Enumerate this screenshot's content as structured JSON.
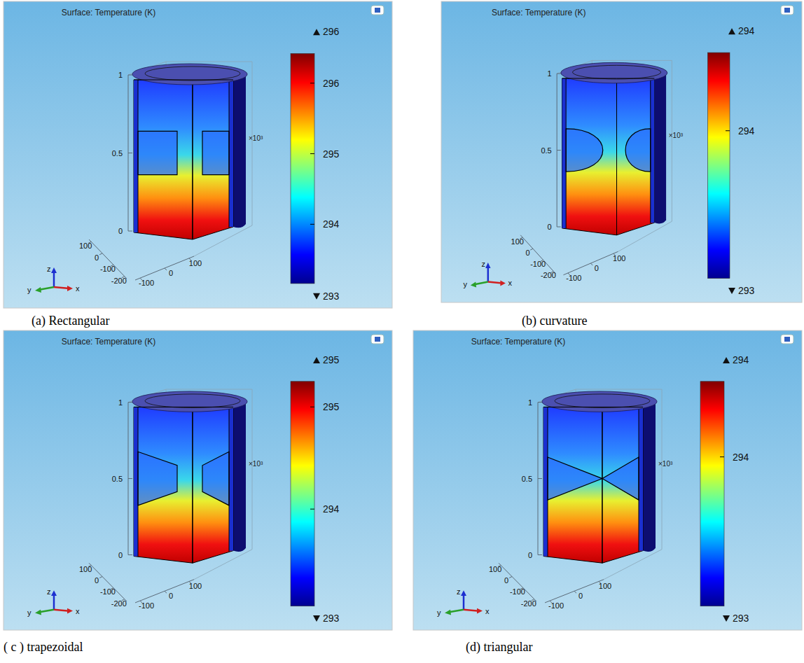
{
  "chart_data": [
    {
      "type": "surface",
      "title": "Surface: Temperature (K)",
      "caption": "(a) Rectangular",
      "xlim": [
        -120,
        120
      ],
      "xticks": [
        -100,
        0,
        100
      ],
      "ylim": [
        -220,
        120
      ],
      "yticks": [
        100,
        0,
        -100,
        -200
      ],
      "zlim": [
        0,
        1
      ],
      "zticks": [
        0,
        0.5,
        1
      ],
      "axis_labels": {
        "x": "x",
        "y": "y",
        "z": "z"
      },
      "annotations": [
        "×10³"
      ],
      "color_range": [
        293.16,
        296.42
      ],
      "color_ticks": [
        294,
        295,
        296
      ],
      "color_max": {
        "value": 296.42,
        "label": "296"
      },
      "color_min": {
        "value": 293.16,
        "label": "293"
      }
    },
    {
      "type": "surface",
      "title": "Surface: Temperature (K)",
      "caption": "(b) curvature",
      "xlim": [
        -120,
        120
      ],
      "xticks": [
        -100,
        0,
        100
      ],
      "ylim": [
        -220,
        120
      ],
      "yticks": [
        100,
        0,
        -100,
        -200
      ],
      "zlim": [
        0,
        1
      ],
      "zticks": [
        0,
        0.5,
        1
      ],
      "axis_labels": {
        "x": "x",
        "y": "y",
        "z": "z"
      },
      "annotations": [
        "×10³"
      ],
      "color_range": [
        293.15,
        294.45
      ],
      "color_ticks": [
        294
      ],
      "color_max": {
        "value": 294.45,
        "label": "294"
      },
      "color_min": {
        "value": 293.15,
        "label": "293"
      }
    },
    {
      "type": "surface",
      "title": "Surface: Temperature (K)",
      "caption": "( c ) trapezoidal",
      "xlim": [
        -120,
        120
      ],
      "xticks": [
        -100,
        0,
        100
      ],
      "ylim": [
        -220,
        120
      ],
      "yticks": [
        100,
        0,
        -100,
        -200
      ],
      "zlim": [
        0,
        1
      ],
      "zticks": [
        0,
        0.5,
        1
      ],
      "axis_labels": {
        "x": "x",
        "y": "y",
        "z": "z"
      },
      "annotations": [
        "×10³"
      ],
      "color_range": [
        293.05,
        295.25
      ],
      "color_ticks": [
        294,
        295
      ],
      "color_max": {
        "value": 295.25,
        "label": "295"
      },
      "color_min": {
        "value": 293.05,
        "label": "293"
      }
    },
    {
      "type": "surface",
      "title": "Surface: Temperature (K)",
      "caption": "(d) triangular",
      "xlim": [
        -120,
        120
      ],
      "xticks": [
        -100,
        0,
        100
      ],
      "ylim": [
        -220,
        120
      ],
      "yticks": [
        100,
        0,
        -100,
        -200
      ],
      "zlim": [
        0,
        1
      ],
      "zticks": [
        0,
        0.5,
        1
      ],
      "axis_labels": {
        "x": "x",
        "y": "y",
        "z": "z"
      },
      "annotations": [
        "×10³"
      ],
      "color_range": [
        293.15,
        294.43
      ],
      "color_ticks": [
        294
      ],
      "color_max": {
        "value": 294.43,
        "label": "294"
      },
      "color_min": {
        "value": 293.15,
        "label": "293"
      }
    }
  ]
}
